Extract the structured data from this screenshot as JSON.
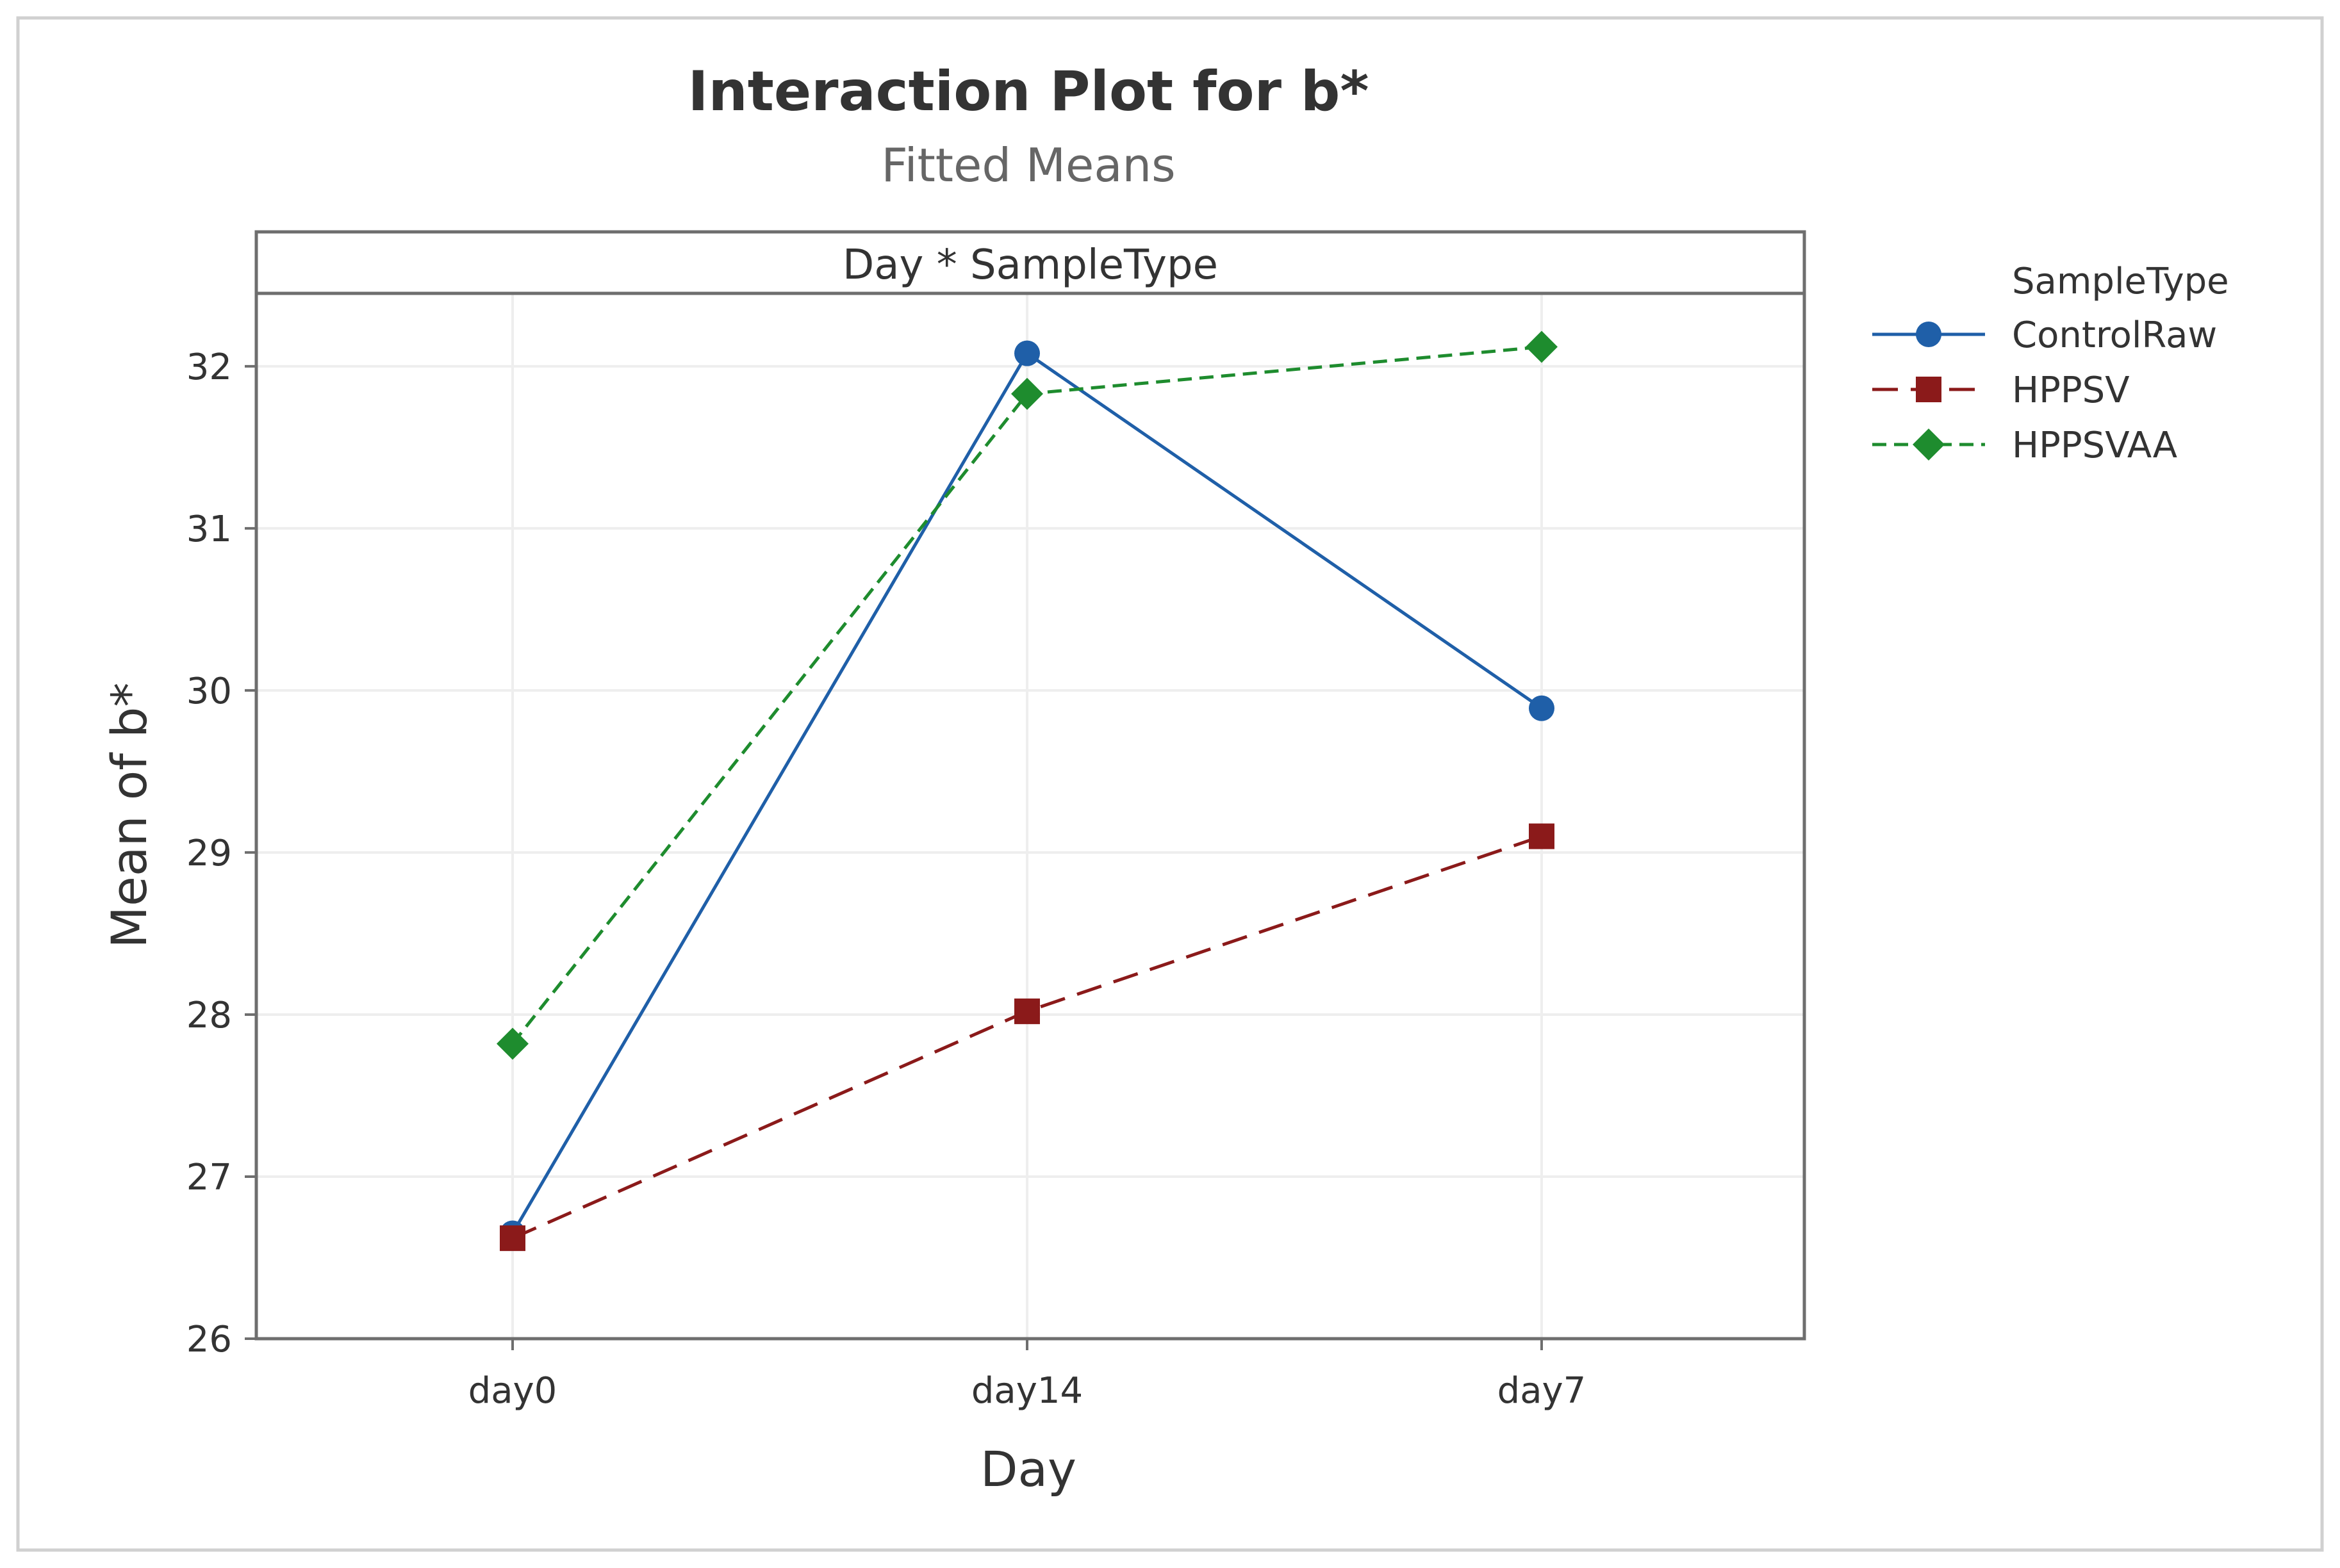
{
  "chart_data": {
    "type": "line",
    "title": "Interaction Plot for b*",
    "subtitle": "Fitted Means",
    "panel_label": "Day * SampleType",
    "xlabel": "Day",
    "ylabel": "Mean of b*",
    "categories": [
      "day0",
      "day14",
      "day7"
    ],
    "ylim": [
      26,
      32.45
    ],
    "yticks": [
      26,
      27,
      28,
      29,
      30,
      31,
      32
    ],
    "grid": true,
    "legend_title": "SampleType",
    "legend_position": "right",
    "series": [
      {
        "name": "ControlRaw",
        "values": [
          26.65,
          32.08,
          29.89
        ],
        "color": "#1F5FA8",
        "marker": "circle",
        "dash": "solid"
      },
      {
        "name": "HPPSV",
        "values": [
          26.62,
          28.02,
          29.1
        ],
        "color": "#8B1A1A",
        "marker": "square",
        "dash": "long-dash"
      },
      {
        "name": "HPPSVAA",
        "values": [
          27.82,
          31.83,
          32.12
        ],
        "color": "#1E8C2E",
        "marker": "diamond",
        "dash": "dash"
      }
    ]
  },
  "colors": {
    "frame": "#D0D0D0",
    "axis": "#6E6E6E",
    "grid": "#EEEEEE",
    "text": "#333333",
    "subtitle_text": "#666666"
  }
}
